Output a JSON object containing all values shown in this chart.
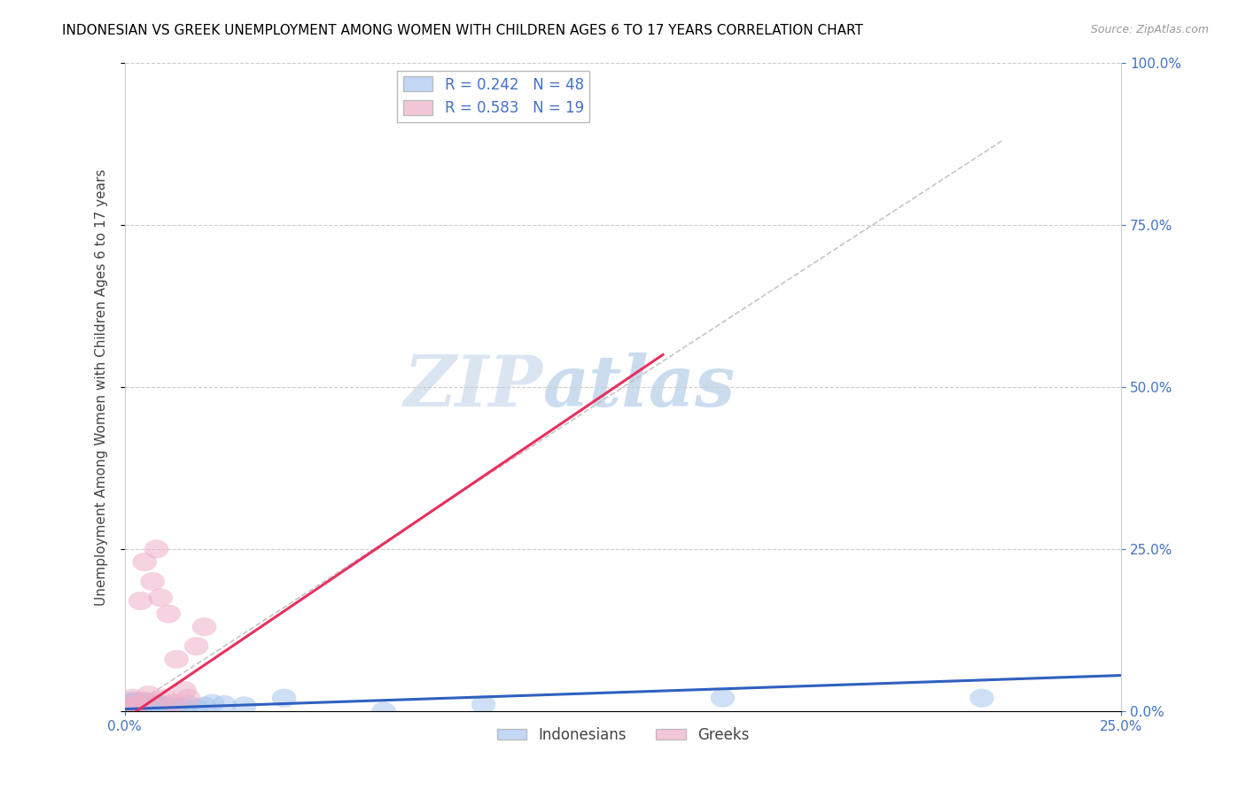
{
  "title": "INDONESIAN VS GREEK UNEMPLOYMENT AMONG WOMEN WITH CHILDREN AGES 6 TO 17 YEARS CORRELATION CHART",
  "source": "Source: ZipAtlas.com",
  "ylabel_label": "Unemployment Among Women with Children Ages 6 to 17 years",
  "legend_indonesians": "Indonesians",
  "legend_greeks": "Greeks",
  "R_indonesians": 0.242,
  "N_indonesians": 48,
  "R_greeks": 0.583,
  "N_greeks": 19,
  "blue_color": "#a8c8f0",
  "pink_color": "#f0b0c8",
  "blue_line_color": "#3060c0",
  "pink_line_color": "#e83060",
  "ref_line_color": "#c0c0c0",
  "watermark_color": "#dce8f5",
  "xmin": 0.0,
  "xmax": 0.25,
  "ymin": 0.0,
  "ymax": 1.0,
  "indo_trend_x0": 0.0,
  "indo_trend_y0": 0.003,
  "indo_trend_x1": 0.25,
  "indo_trend_y1": 0.055,
  "greek_trend_x0": 0.003,
  "greek_trend_y0": 0.0,
  "greek_trend_x1": 0.135,
  "greek_trend_y1": 0.55,
  "indonesians_x": [
    0.001,
    0.001,
    0.001,
    0.001,
    0.002,
    0.002,
    0.002,
    0.002,
    0.002,
    0.003,
    0.003,
    0.003,
    0.003,
    0.004,
    0.004,
    0.004,
    0.005,
    0.005,
    0.005,
    0.005,
    0.006,
    0.006,
    0.006,
    0.007,
    0.007,
    0.007,
    0.008,
    0.008,
    0.008,
    0.009,
    0.009,
    0.01,
    0.01,
    0.011,
    0.012,
    0.013,
    0.015,
    0.016,
    0.018,
    0.02,
    0.022,
    0.025,
    0.03,
    0.04,
    0.065,
    0.09,
    0.15,
    0.215
  ],
  "indonesians_y": [
    0.003,
    0.006,
    0.01,
    0.014,
    0.002,
    0.005,
    0.008,
    0.012,
    0.016,
    0.003,
    0.007,
    0.011,
    0.015,
    0.004,
    0.008,
    0.013,
    0.002,
    0.006,
    0.01,
    0.015,
    0.003,
    0.007,
    0.012,
    0.004,
    0.008,
    0.013,
    0.003,
    0.007,
    0.012,
    0.005,
    0.01,
    0.004,
    0.009,
    0.006,
    0.008,
    0.005,
    0.007,
    0.01,
    0.005,
    0.008,
    0.012,
    0.01,
    0.008,
    0.02,
    0.0,
    0.01,
    0.02,
    0.02
  ],
  "greeks_x": [
    0.001,
    0.002,
    0.002,
    0.003,
    0.004,
    0.005,
    0.005,
    0.006,
    0.007,
    0.008,
    0.009,
    0.01,
    0.011,
    0.012,
    0.013,
    0.015,
    0.016,
    0.018,
    0.02
  ],
  "greeks_y": [
    0.005,
    0.005,
    0.02,
    0.01,
    0.17,
    0.015,
    0.23,
    0.025,
    0.2,
    0.25,
    0.175,
    0.02,
    0.15,
    0.012,
    0.08,
    0.032,
    0.02,
    0.1,
    0.13
  ]
}
